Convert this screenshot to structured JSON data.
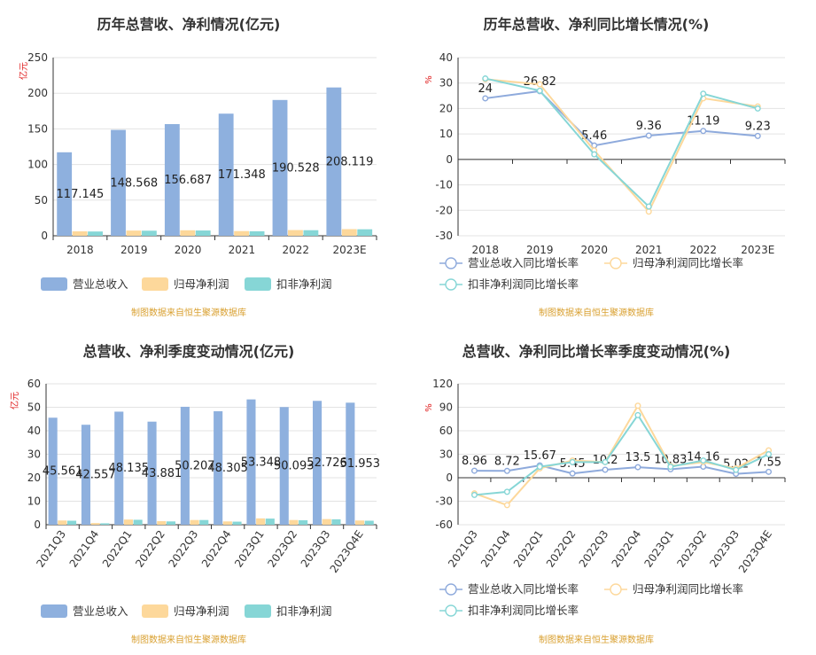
{
  "source_note": "制图数据来自恒生聚源数据库",
  "chart_data": [
    {
      "type": "bar",
      "title": "历年总营收、净利情况(亿元)",
      "ylabel": "亿元",
      "ylim": [
        0,
        250
      ],
      "yticks": [
        0,
        50,
        100,
        150,
        200,
        250
      ],
      "categories": [
        "2018",
        "2019",
        "2020",
        "2021",
        "2022",
        "2023E"
      ],
      "series": [
        {
          "name": "营业总收入",
          "color": "#8eb0de",
          "values": [
            117.145,
            148.568,
            156.687,
            171.348,
            190.528,
            208.119
          ],
          "labels": [
            "117.145",
            "148.568",
            "156.687",
            "171.348",
            "190.528",
            "208.119"
          ]
        },
        {
          "name": "归母净利润",
          "color": "#fdd89b",
          "values": [
            6.2,
            7.3,
            7.7,
            6.6,
            8.0,
            9.3
          ]
        },
        {
          "name": "扣非净利润",
          "color": "#86d6d6",
          "values": [
            6.0,
            7.1,
            7.4,
            6.3,
            7.8,
            9.1
          ]
        }
      ],
      "legend": "bottom",
      "grid": true
    },
    {
      "type": "line",
      "title": "历年总营收、净利同比增长情况(%)",
      "ylabel": "%",
      "ylim": [
        -30,
        40
      ],
      "yticks": [
        -30,
        -20,
        -10,
        0,
        10,
        20,
        30,
        40
      ],
      "categories": [
        "2018",
        "2019",
        "2020",
        "2021",
        "2022",
        "2023E"
      ],
      "series": [
        {
          "name": "营业总收入同比增长率",
          "color": "#8eaadc",
          "values": [
            24,
            26.82,
            5.46,
            9.36,
            11.19,
            9.23
          ],
          "labels": [
            "24",
            "26.82",
            "5.46",
            "9.36",
            "11.19",
            "9.23"
          ]
        },
        {
          "name": "归母净利润同比增长率",
          "color": "#fdd89b",
          "values": [
            31.5,
            29.5,
            3.5,
            -20.5,
            24.0,
            20.8
          ]
        },
        {
          "name": "扣非净利润同比增长率",
          "color": "#86d6d6",
          "values": [
            31.8,
            27.0,
            2.0,
            -18.5,
            25.8,
            20.0
          ]
        }
      ],
      "legend": "bottom",
      "grid": true
    },
    {
      "type": "bar",
      "title": "总营收、净利季度变动情况(亿元)",
      "ylabel": "亿元",
      "ylim": [
        0,
        60
      ],
      "yticks": [
        0,
        10,
        20,
        30,
        40,
        50,
        60
      ],
      "categories": [
        "2021Q3",
        "2021Q4",
        "2022Q1",
        "2022Q2",
        "2022Q3",
        "2022Q4",
        "2023Q1",
        "2023Q2",
        "2023Q3",
        "2023Q4E"
      ],
      "series": [
        {
          "name": "营业总收入",
          "color": "#8eb0de",
          "values": [
            45.561,
            42.557,
            48.135,
            43.881,
            50.207,
            48.305,
            53.348,
            50.093,
            52.726,
            51.953
          ],
          "labels": [
            "45.561",
            "42.557",
            "48.135",
            "43.881",
            "50.207",
            "48.305",
            "53.348",
            "50.093",
            "52.726",
            "51.953"
          ]
        },
        {
          "name": "归母净利润",
          "color": "#fdd89b",
          "values": [
            1.8,
            0.7,
            2.2,
            1.5,
            2.0,
            1.4,
            2.7,
            2.0,
            2.4,
            1.8
          ]
        },
        {
          "name": "扣非净利润",
          "color": "#86d6d6",
          "values": [
            1.7,
            0.6,
            2.1,
            1.4,
            2.0,
            1.3,
            2.6,
            1.9,
            2.3,
            1.7
          ]
        }
      ],
      "legend": "bottom",
      "grid": true
    },
    {
      "type": "line",
      "title": "总营收、净利同比增长率季度变动情况(%)",
      "ylabel": "%",
      "ylim": [
        -60,
        120
      ],
      "yticks": [
        -60,
        -30,
        0,
        30,
        60,
        90,
        120
      ],
      "categories": [
        "2021Q3",
        "2021Q4",
        "2022Q1",
        "2022Q2",
        "2022Q3",
        "2022Q4",
        "2023Q1",
        "2023Q2",
        "2023Q3",
        "2023Q4E"
      ],
      "series": [
        {
          "name": "营业总收入同比增长率",
          "color": "#8eaadc",
          "values": [
            8.96,
            8.72,
            15.67,
            5.45,
            10.2,
            13.5,
            10.83,
            14.16,
            5.02,
            7.55
          ],
          "labels": [
            "8.96",
            "8.72",
            "15.67",
            "5.45",
            "10.2",
            "13.5",
            "10.83",
            "14.16",
            "5.02",
            "7.55"
          ]
        },
        {
          "name": "归母净利润同比增长率",
          "color": "#fdd89b",
          "values": [
            -20,
            -35,
            12,
            22,
            20,
            92,
            15,
            20,
            12,
            35
          ]
        },
        {
          "name": "扣非净利润同比增长率",
          "color": "#86d6d6",
          "values": [
            -22,
            -18,
            14,
            20,
            20,
            80,
            14,
            22,
            10,
            30
          ]
        }
      ],
      "legend": "bottom",
      "grid": true
    }
  ]
}
